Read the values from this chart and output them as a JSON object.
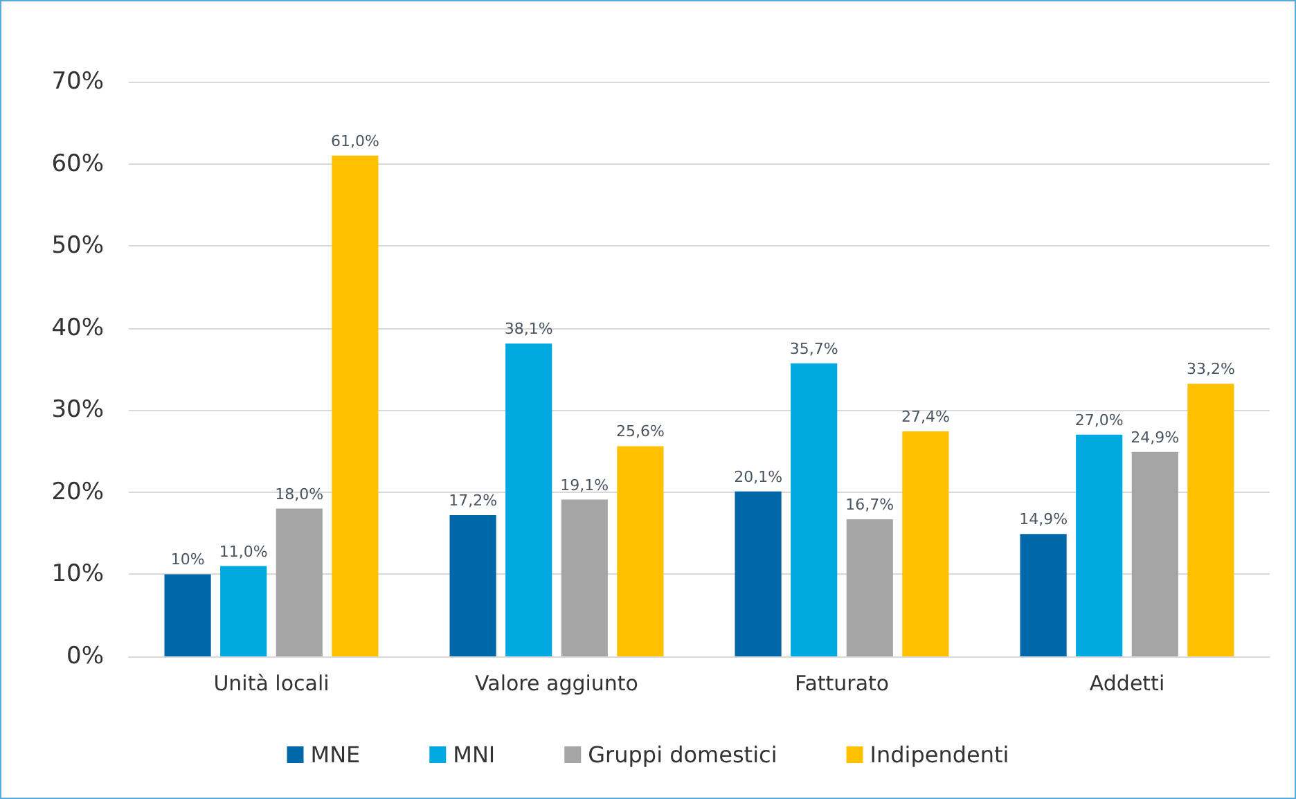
{
  "chart_data": {
    "type": "bar",
    "categories": [
      "Unità locali",
      "Valore aggiunto",
      "Fatturato",
      "Addetti"
    ],
    "series": [
      {
        "name": "MNE",
        "color": "#0068a8",
        "values": [
          10,
          17.2,
          20.1,
          14.9
        ],
        "value_labels": [
          "10%",
          "17,2%",
          "20,1%",
          "14,9%"
        ]
      },
      {
        "name": "MNI",
        "color": "#00a9e0",
        "values": [
          11.0,
          38.1,
          35.7,
          27.0
        ],
        "value_labels": [
          "11,0%",
          "38,1%",
          "35,7%",
          "27,0%"
        ]
      },
      {
        "name": "Gruppi domestici",
        "color": "#a6a5a5",
        "values": [
          18.0,
          19.1,
          16.7,
          24.9
        ],
        "value_labels": [
          "18,0%",
          "19,1%",
          "16,7%",
          "24,9%"
        ]
      },
      {
        "name": "Indipendenti",
        "color": "#ffc000",
        "values": [
          61.0,
          25.6,
          27.4,
          33.2
        ],
        "value_labels": [
          "61,0%",
          "25,6%",
          "27,4%",
          "33,2%"
        ]
      }
    ],
    "ylim": [
      0,
      70
    ],
    "yticks": [
      {
        "value": 0,
        "label": "0%"
      },
      {
        "value": 10,
        "label": "10%"
      },
      {
        "value": 20,
        "label": "20%"
      },
      {
        "value": 30,
        "label": "30%"
      },
      {
        "value": 40,
        "label": "40%"
      },
      {
        "value": 50,
        "label": "50%"
      },
      {
        "value": 60,
        "label": "60%"
      },
      {
        "value": 70,
        "label": "70%"
      }
    ],
    "grid": "y",
    "legend": "bottom"
  }
}
